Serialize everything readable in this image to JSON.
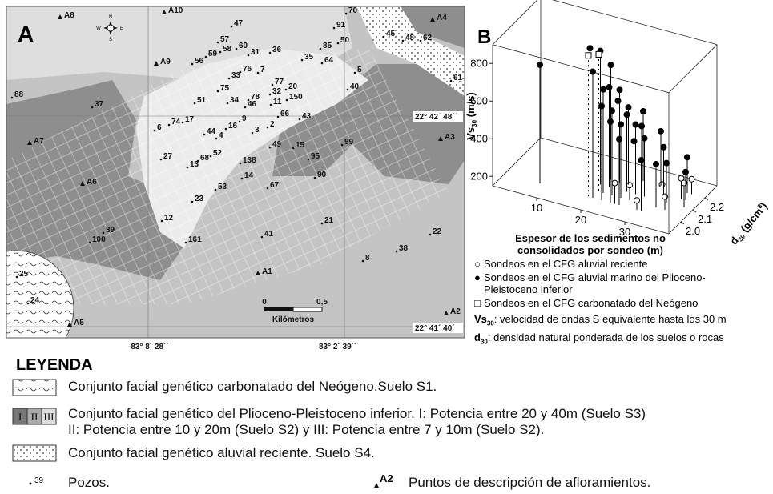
{
  "map": {
    "panel": "A",
    "compass": [
      "N",
      "S",
      "E",
      "W"
    ],
    "wells": [
      "47",
      "70",
      "91",
      "45",
      "48",
      "62",
      "57",
      "58",
      "60",
      "31",
      "36",
      "85",
      "50",
      "35",
      "64",
      "59",
      "56",
      "76",
      "7",
      "33",
      "5",
      "61",
      "77",
      "20",
      "75",
      "32",
      "40",
      "88",
      "51",
      "78",
      "150",
      "34",
      "46",
      "11",
      "37",
      "66",
      "43",
      "9",
      "17",
      "74",
      "2",
      "16",
      "6",
      "44",
      "3",
      "4",
      "99",
      "49",
      "15",
      "52",
      "68",
      "27",
      "13",
      "138",
      "95",
      "14",
      "90",
      "67",
      "53",
      "23",
      "21",
      "12",
      "22",
      "39",
      "41",
      "161",
      "100",
      "38",
      "8",
      "25",
      "24"
    ],
    "outcrops": [
      "A8",
      "A10",
      "A4",
      "A9",
      "A7",
      "A3",
      "A6",
      "A1",
      "A2",
      "A5"
    ],
    "coordinates": [
      "22° 42´ 48´´",
      "22° 41´ 40´",
      "-83° 8´ 28´´",
      "83° 2´ 39´´"
    ],
    "scale": {
      "labels": [
        "0",
        "0,5"
      ],
      "unit": "Kilómetros"
    }
  },
  "chart_data": {
    "type": "scatter3d",
    "panel": "B",
    "xlabel": "Espesor de los sedimentos no consolidados por sondeo (m)",
    "ylabel_parts": [
      "d",
      "30",
      " (g/cm",
      "3",
      ")"
    ],
    "zlabel_parts": [
      "Vs",
      "30",
      " (m/s)"
    ],
    "xlim": [
      0,
      40
    ],
    "xticks": [
      10,
      20,
      30
    ],
    "ylim": [
      1.9,
      2.3
    ],
    "yticks": [
      {
        "value": 2,
        "label": "2.0"
      },
      2.1,
      2.2
    ],
    "zlim": [
      150,
      900
    ],
    "zticks": [
      200,
      400,
      600,
      800
    ],
    "series": [
      {
        "name": "Sondeos en el CFG aluvial reciente",
        "marker": "open-circle",
        "color": "#000000",
        "x": [
          25,
          27,
          30,
          33,
          35,
          36,
          37,
          38
        ],
        "y": [
          2.0,
          2.05,
          2.0,
          2.1,
          2.05,
          2.15,
          2.2,
          2.1
        ],
        "z": [
          260,
          230,
          200,
          240,
          220,
          260,
          230,
          280
        ]
      },
      {
        "name": "Sondeos en el CFG aluvial marino del Plioceno-Pleistoceno inferior",
        "marker": "circle",
        "color": "#000000",
        "x": [
          8,
          18,
          19,
          20,
          20,
          21,
          21,
          22,
          22,
          23,
          23,
          24,
          24,
          25,
          25,
          26,
          26,
          27,
          27,
          28,
          29,
          30,
          31,
          32,
          33,
          34,
          36,
          37
        ],
        "y": [
          2.0,
          2.05,
          2.1,
          2.0,
          2.15,
          2.05,
          2.1,
          2.0,
          2.15,
          2.1,
          2.05,
          2.0,
          2.15,
          2.1,
          2.05,
          2.2,
          2.0,
          2.1,
          2.15,
          2.05,
          2.1,
          2.2,
          2.0,
          2.15,
          2.05,
          2.1,
          2.2,
          2.15
        ],
        "z": [
          780,
          900,
          860,
          820,
          760,
          700,
          680,
          650,
          640,
          620,
          600,
          580,
          560,
          560,
          540,
          520,
          500,
          520,
          480,
          470,
          460,
          440,
          420,
          400,
          380,
          360,
          340,
          300
        ]
      },
      {
        "name": "Sondeos en el CFG carbonatado del Neógeno",
        "marker": "square",
        "color": "#000000",
        "x": [
          19,
          20
        ],
        "y": [
          2.0,
          2.05
        ],
        "z": [
          900,
          880
        ]
      }
    ],
    "notes": [
      [
        "Vs",
        "30",
        ": velocidad de ondas S equivalente hasta los 30 m"
      ],
      [
        "d",
        "30",
        ": densidad natural ponderada de los suelos o rocas"
      ]
    ]
  },
  "legend": {
    "title": "LEYENDA",
    "items": [
      {
        "text": [
          "Conjunto facial genético carbonatado del Neógeno.Suelo S1."
        ]
      },
      {
        "swatch": [
          "I",
          "II",
          "III"
        ],
        "text": [
          "Conjunto facial genético del Plioceno-Pleistoceno inferior. I: Potencia entre 20 y 40m (Suelo S3)",
          "II: Potencia entre 10 y 20m (Suelo S2) y III: Potencia entre 7 y 10m (Suelo S2)."
        ]
      },
      {
        "text": [
          "Conjunto facial genético aluvial reciente. Suelo S4."
        ]
      }
    ],
    "well_symbol": "39",
    "well_text": "Pozos.",
    "outcrop_symbol": "A2",
    "outcrop_text": "Puntos de descripción de afloramientos."
  }
}
